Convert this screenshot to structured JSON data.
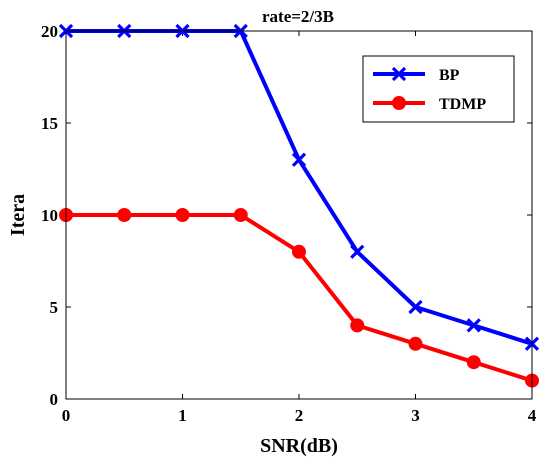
{
  "chart_data": {
    "type": "line",
    "title": "rate=2/3B",
    "xlabel": "SNR(dB)",
    "ylabel": "Itera",
    "xlim": [
      0,
      4
    ],
    "ylim": [
      0,
      20
    ],
    "x_ticks": [
      0,
      1,
      2,
      3,
      4
    ],
    "y_ticks": [
      0,
      5,
      10,
      15,
      20
    ],
    "x": [
      0,
      0.5,
      1,
      1.5,
      2,
      2.5,
      3,
      3.5,
      4
    ],
    "grid": false,
    "legend_position": "top-right",
    "series": [
      {
        "name": "BP",
        "values": [
          20,
          20,
          20,
          20,
          13,
          8,
          5,
          4,
          3
        ],
        "color": "#0000ff",
        "marker": "x"
      },
      {
        "name": "TDMP",
        "values": [
          10,
          10,
          10,
          10,
          8,
          4,
          3,
          2,
          1
        ],
        "color": "#ff0000",
        "marker": "circle"
      }
    ]
  }
}
